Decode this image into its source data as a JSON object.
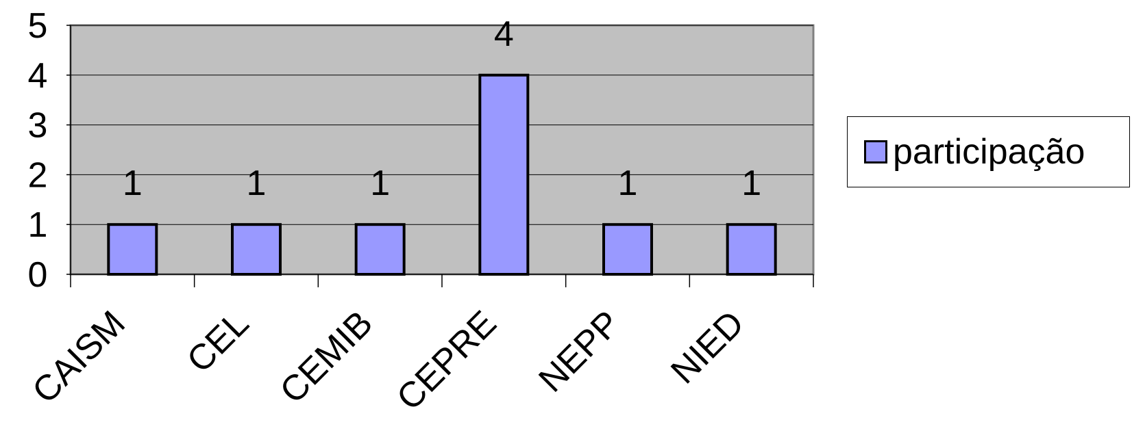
{
  "chart_data": {
    "type": "bar",
    "categories": [
      "CAISM",
      "CEL",
      "CEMIB",
      "CEPRE",
      "NEPP",
      "NIED"
    ],
    "series": [
      {
        "name": "participação",
        "values": [
          1,
          1,
          1,
          4,
          1,
          1
        ]
      }
    ],
    "data_labels": [
      "1",
      "1",
      "1",
      "4",
      "1",
      "1"
    ],
    "y_ticks": [
      "0",
      "1",
      "2",
      "3",
      "4",
      "5"
    ],
    "ylim": [
      0,
      5
    ],
    "grid": true,
    "legend_position": "right",
    "colors": {
      "bar_fill": "#9999ff",
      "bar_stroke": "#000000",
      "plot_background": "#c0c0c0",
      "plot_border": "#808080",
      "grid": "#000000",
      "text": "#000000"
    }
  },
  "legend": {
    "label": "participação"
  }
}
